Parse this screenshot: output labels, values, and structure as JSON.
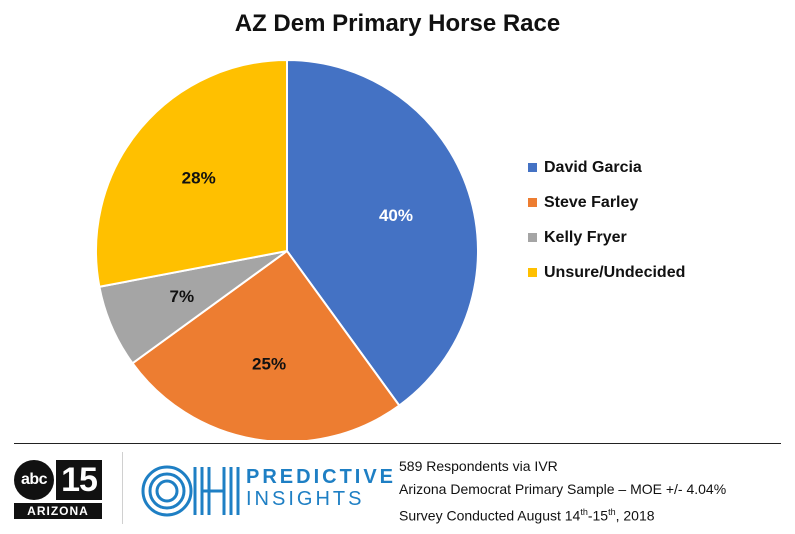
{
  "chart_data": {
    "type": "pie",
    "title": "AZ Dem Primary Horse Race",
    "slices": [
      {
        "name": "David Garcia",
        "value": 40,
        "label": "40%",
        "color": "#4472c4",
        "label_color": "#ffffff"
      },
      {
        "name": "Steve Farley",
        "value": 25,
        "label": "25%",
        "color": "#ed7d31",
        "label_color": "#111111"
      },
      {
        "name": "Kelly Fryer",
        "value": 7,
        "label": "7%",
        "color": "#a5a5a5",
        "label_color": "#111111"
      },
      {
        "name": "Unsure/Undecided",
        "value": 28,
        "label": "28%",
        "color": "#ffc000",
        "label_color": "#111111"
      }
    ],
    "legend_position": "right"
  },
  "footer": {
    "abc_logo": {
      "network": "abc",
      "channel": "15",
      "state": "ARIZONA"
    },
    "brand": {
      "line1": "PREDICTIVE",
      "line2": "INSIGHTS",
      "monogram_icon": "oh-monogram-icon",
      "color": "#1e7fc4"
    },
    "notes": {
      "respondents": "589 Respondents via IVR",
      "sample": "Arizona Democrat Primary Sample – MOE +/- 4.04%",
      "survey_prefix": "Survey Conducted August 14",
      "survey_sup1": "th",
      "survey_mid": "-15",
      "survey_sup2": "th",
      "survey_suffix": ", 2018"
    }
  }
}
